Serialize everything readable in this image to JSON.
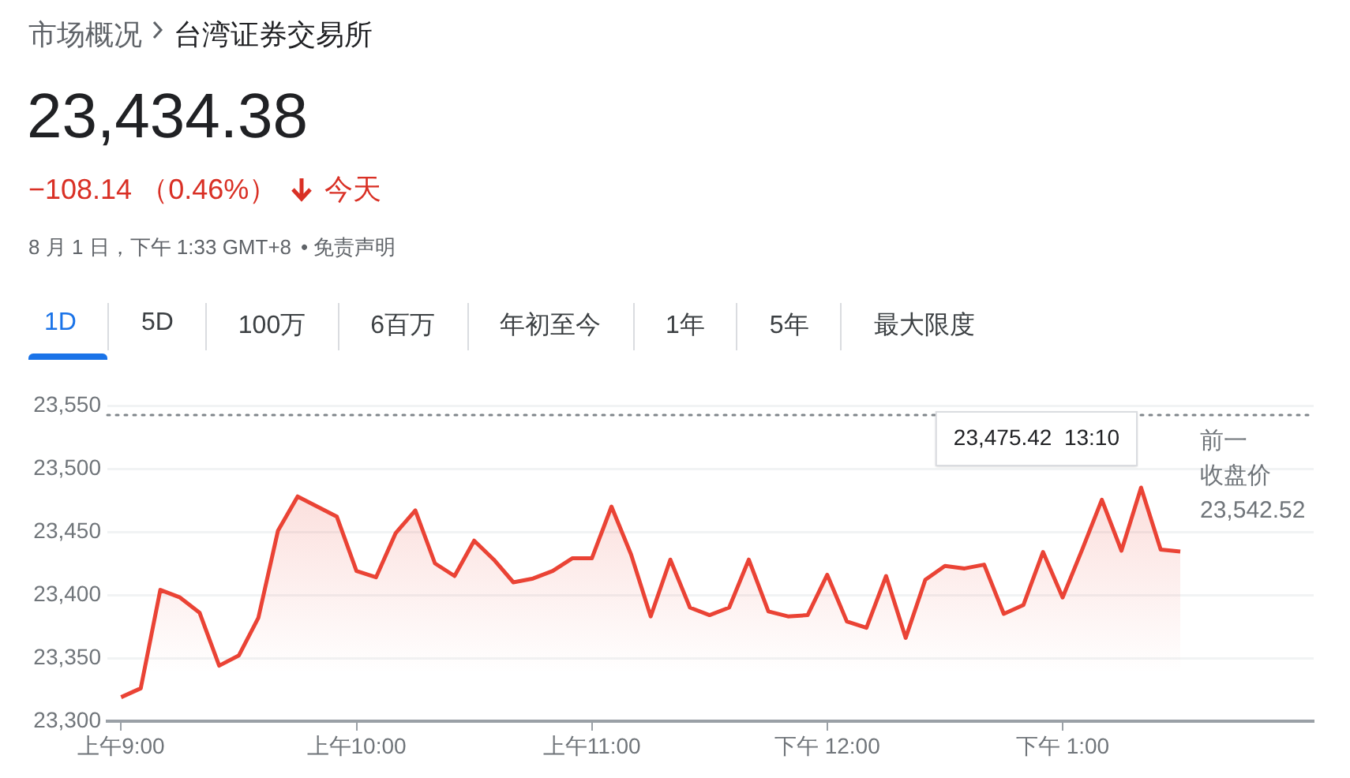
{
  "chart_data": {
    "type": "area",
    "title": "23,434.38",
    "subtitle": "−108.14 （0.46%）",
    "annotations": [
      "市场概况",
      "台湾证券交易所",
      "今天",
      "8 月 1 日，下午 1:33 GMT+8",
      "• 免责声明",
      "1D",
      "5D",
      "100万",
      "6百万",
      "年初至今",
      "1年",
      "5年",
      "最大限度",
      "23,475.42  13:10"
    ],
    "categories": [
      "上午9:00",
      null,
      null,
      null,
      null,
      null,
      null,
      null,
      null,
      null,
      null,
      null,
      "上午10:00",
      null,
      null,
      null,
      null,
      null,
      null,
      null,
      null,
      null,
      null,
      null,
      "上午11:00",
      null,
      null,
      null,
      null,
      null,
      null,
      null,
      null,
      null,
      null,
      null,
      "下午 12:00",
      null,
      null,
      null,
      null,
      null,
      null,
      null,
      null,
      null,
      null,
      null,
      "下午 1:00",
      null,
      null,
      null,
      null,
      null,
      null,
      null,
      null,
      null,
      null,
      null,
      null
    ],
    "series": [
      {
        "color": "#ea4335",
        "values": [
          23319,
          23326,
          23404,
          23398,
          23386,
          23344,
          23352,
          23382,
          23451,
          23478,
          23470,
          23462,
          23419,
          23414,
          23449,
          23467,
          23425,
          23415,
          23443,
          23428,
          23410,
          23413,
          23419,
          23429,
          23429,
          23470,
          23432,
          23383,
          23428,
          23390,
          23384,
          23390,
          23428,
          23387,
          23383,
          23384,
          23416,
          23379,
          23374,
          23415,
          23366,
          23412,
          23423,
          23421,
          23424,
          23385,
          23392,
          23434,
          23398,
          23436,
          23475.42,
          23435,
          23485,
          23436,
          23434.38,
          null,
          null,
          null,
          null,
          null,
          null
        ]
      }
    ],
    "ylim": [
      23300,
      23550
    ],
    "yticks": [
      {
        "value": 23300,
        "label": "23,300"
      },
      {
        "value": 23350,
        "label": "23,350"
      },
      {
        "value": 23400,
        "label": "23,400"
      },
      {
        "value": 23450,
        "label": "23,450"
      },
      {
        "value": 23500,
        "label": "23,500"
      },
      {
        "value": 23550,
        "label": "23,550"
      }
    ],
    "ref_lines": [
      {
        "axis": "y",
        "value": 23542.52,
        "label": "前一收盘价 23,542.52",
        "line_style": "dotted"
      }
    ],
    "grid": "y",
    "legend": false,
    "marker": "none",
    "line_style": "solid"
  }
}
